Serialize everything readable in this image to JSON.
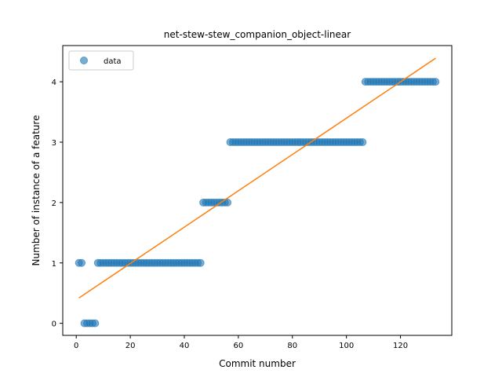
{
  "chart_data": {
    "type": "scatter",
    "title": "net-stew-stew_companion_object-linear",
    "xlabel": "Commit number",
    "ylabel": "Number of instance of a feature",
    "xlim": [
      -5,
      139
    ],
    "ylim": [
      -0.2,
      4.6
    ],
    "xticks": [
      0,
      20,
      40,
      60,
      80,
      100,
      120
    ],
    "yticks": [
      0,
      1,
      2,
      3,
      4
    ],
    "grid": false,
    "legend": {
      "placement": "upper-left",
      "entries": [
        "data"
      ]
    },
    "colors": {
      "points": "#1f77b4",
      "fit": "#ff7f0e"
    },
    "series": [
      {
        "name": "data",
        "kind": "scatter",
        "segments": [
          {
            "x_start": 1,
            "x_end": 2,
            "y": 1
          },
          {
            "x_start": 3,
            "x_end": 7,
            "y": 0
          },
          {
            "x_start": 8,
            "x_end": 46,
            "y": 1
          },
          {
            "x_start": 47,
            "x_end": 56,
            "y": 2
          },
          {
            "x_start": 57,
            "x_end": 106,
            "y": 3
          },
          {
            "x_start": 107,
            "x_end": 133,
            "y": 4
          }
        ]
      },
      {
        "kind": "line",
        "x": [
          1,
          133
        ],
        "y": [
          0.42,
          4.39
        ]
      }
    ]
  }
}
